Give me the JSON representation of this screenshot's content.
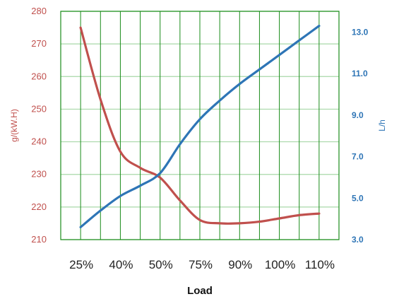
{
  "chart_data": {
    "type": "line",
    "title": "",
    "xlabel": "Load",
    "ylabel": "g/(kW.H)",
    "y2label": "L/h",
    "categories": [
      "25%",
      "40%",
      "50%",
      "75%",
      "90%",
      "100%",
      "110%"
    ],
    "ylim": [
      210,
      280
    ],
    "y2lim": [
      3.0,
      14.0
    ],
    "yticks": [
      "210",
      "220",
      "230",
      "240",
      "250",
      "260",
      "270",
      "280"
    ],
    "y2ticks": [
      "3.0",
      "5.0",
      "7.0",
      "9.0",
      "11.0",
      "13.0"
    ],
    "grid": true,
    "legend": "none",
    "series": [
      {
        "axis": "left",
        "color": "#c0504d",
        "x": [
          0,
          0.5,
          1,
          1.5,
          2,
          2.5,
          3,
          3.5,
          4,
          4.5,
          5,
          5.5,
          6
        ],
        "values": [
          275,
          253,
          237,
          232,
          229,
          222,
          216,
          215,
          215,
          215.5,
          216.5,
          217.5,
          218
        ]
      },
      {
        "axis": "right",
        "color": "#2e75b6",
        "x": [
          0,
          0.5,
          1,
          1.5,
          2,
          2.5,
          3,
          3.5,
          4,
          4.5,
          5,
          5.5,
          6
        ],
        "values": [
          3.6,
          4.4,
          5.1,
          5.6,
          6.2,
          7.6,
          8.8,
          9.7,
          10.5,
          11.2,
          11.9,
          12.6,
          13.3
        ]
      }
    ]
  },
  "colors": {
    "grid_vertical": "#1a8c1a",
    "grid_horizontal": "#a8d8a8",
    "left_axis": "#c0504d",
    "right_axis": "#2e75b6"
  }
}
